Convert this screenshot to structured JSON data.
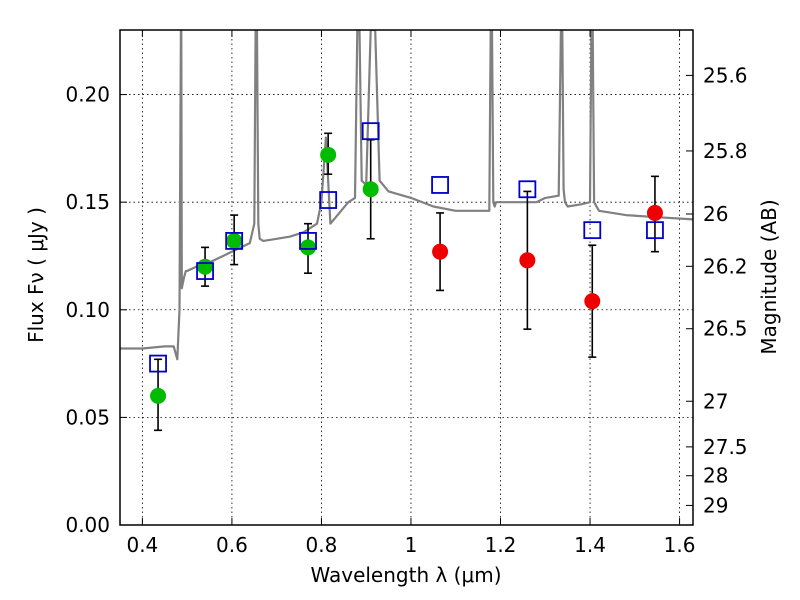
{
  "chart_data": {
    "type": "scatter",
    "title": "",
    "xlabel": "Wavelength  λ (μm)",
    "ylabel": "Flux  Fν  ( μJy )",
    "y2label": "Magnitude (AB)",
    "xlim": [
      0.35,
      1.63
    ],
    "ylim": [
      0.0,
      0.23
    ],
    "grid": true,
    "xticks": [
      0.4,
      0.6,
      0.8,
      1.0,
      1.2,
      1.4,
      1.6
    ],
    "xtick_labels": [
      "0.4",
      "0.6",
      "0.8",
      "1",
      "1.2",
      "1.4",
      "1.6"
    ],
    "yticks": [
      0.0,
      0.05,
      0.1,
      0.15,
      0.2
    ],
    "ytick_labels": [
      "0.00",
      "0.05",
      "0.10",
      "0.15",
      "0.20"
    ],
    "mag_ticks": [
      {
        "label": "25.6",
        "flux": 0.2089
      },
      {
        "label": "25.8",
        "flux": 0.1738
      },
      {
        "label": "26",
        "flux": 0.1445
      },
      {
        "label": "26.2",
        "flux": 0.1202
      },
      {
        "label": "26.5",
        "flux": 0.0912
      },
      {
        "label": "27",
        "flux": 0.0575
      },
      {
        "label": "27.5",
        "flux": 0.0363
      },
      {
        "label": "28",
        "flux": 0.0229
      },
      {
        "label": "29",
        "flux": 0.0091
      }
    ],
    "series": [
      {
        "name": "green points",
        "color": "#00bb00",
        "marker": "circle",
        "x": [
          0.435,
          0.54,
          0.605,
          0.77,
          0.815,
          0.91
        ],
        "y": [
          0.06,
          0.12,
          0.132,
          0.129,
          0.172,
          0.156
        ],
        "yerr_low": [
          0.044,
          0.111,
          0.121,
          0.117,
          0.163,
          0.133
        ],
        "yerr_high": [
          0.077,
          0.129,
          0.144,
          0.14,
          0.182,
          0.179
        ]
      },
      {
        "name": "red points",
        "color": "#ee0000",
        "marker": "circle",
        "x": [
          1.065,
          1.26,
          1.405,
          1.545
        ],
        "y": [
          0.127,
          0.123,
          0.104,
          0.145
        ],
        "yerr_low": [
          0.109,
          0.091,
          0.078,
          0.127
        ],
        "yerr_high": [
          0.145,
          0.155,
          0.13,
          0.162
        ]
      },
      {
        "name": "model squares",
        "color": "#0000cc",
        "marker": "open-square",
        "x": [
          0.435,
          0.54,
          0.605,
          0.77,
          0.815,
          0.91,
          1.065,
          1.26,
          1.405,
          1.545
        ],
        "y": [
          0.075,
          0.118,
          0.132,
          0.132,
          0.151,
          0.183,
          0.158,
          0.156,
          0.137,
          0.137
        ]
      },
      {
        "name": "template spectrum",
        "color": "#808080",
        "marker": "line",
        "x": [
          0.35,
          0.4,
          0.45,
          0.47,
          0.478,
          0.483,
          0.486,
          0.487,
          0.488,
          0.493,
          0.497,
          0.5,
          0.52,
          0.55,
          0.58,
          0.61,
          0.64,
          0.65,
          0.653,
          0.656,
          0.659,
          0.662,
          0.67,
          0.7,
          0.73,
          0.76,
          0.79,
          0.8,
          0.81,
          0.82,
          0.86,
          0.875,
          0.88,
          0.885,
          0.89,
          0.9,
          0.91,
          0.92,
          0.93,
          0.95,
          1.0,
          1.05,
          1.1,
          1.15,
          1.175,
          1.178,
          1.181,
          1.184,
          1.187,
          1.19,
          1.23,
          1.28,
          1.3,
          1.33,
          1.335,
          1.338,
          1.341,
          1.344,
          1.35,
          1.38,
          1.4,
          1.403,
          1.406,
          1.409,
          1.42,
          1.48,
          1.55,
          1.63
        ],
        "y": [
          0.082,
          0.082,
          0.083,
          0.083,
          0.077,
          0.1,
          0.23,
          0.23,
          0.11,
          0.115,
          0.118,
          0.118,
          0.12,
          0.122,
          0.125,
          0.128,
          0.131,
          0.14,
          0.23,
          0.23,
          0.14,
          0.133,
          0.132,
          0.133,
          0.134,
          0.136,
          0.14,
          0.15,
          0.18,
          0.14,
          0.15,
          0.152,
          0.23,
          0.23,
          0.16,
          0.158,
          0.23,
          0.23,
          0.16,
          0.155,
          0.152,
          0.148,
          0.146,
          0.146,
          0.146,
          0.23,
          0.23,
          0.15,
          0.148,
          0.15,
          0.15,
          0.15,
          0.152,
          0.153,
          0.23,
          0.23,
          0.156,
          0.15,
          0.148,
          0.149,
          0.15,
          0.23,
          0.23,
          0.15,
          0.146,
          0.144,
          0.143,
          0.142
        ]
      }
    ]
  }
}
